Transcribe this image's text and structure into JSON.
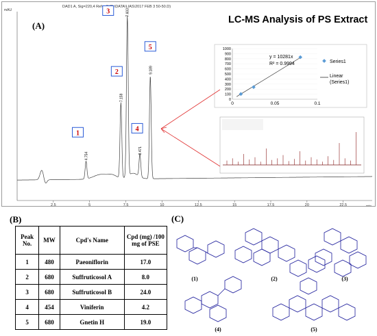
{
  "panel_a": {
    "label": "(A)",
    "header": "DAD1 A, Sig=220,4 Ref=off (D:\\DATA\\LIAS\\2017 FEB 3 50-50.D)",
    "y_unit": "mAU",
    "x_unit": "min",
    "title": "LC-MS Analysis of PS Extract",
    "peak_boxes": [
      "1",
      "2",
      "3",
      "4",
      "5"
    ],
    "peak_times": [
      "4.754",
      "7.159",
      "7.603",
      "8.471",
      "9.189"
    ],
    "colors": {
      "box_border": "#2a5bd7",
      "box_text": "#cc0000",
      "arrow": "#e03030",
      "trace": "#404040"
    }
  },
  "chart_data": [
    {
      "type": "line",
      "title": "LC-MS Analysis of PS Extract",
      "xlabel": "min",
      "ylabel": "mAU",
      "x_ticks": [
        "2.5",
        "5",
        "7.5",
        "10",
        "12.5",
        "15",
        "17.5",
        "20",
        "22.5"
      ],
      "xlim": [
        0,
        24.5
      ],
      "ylim": [
        -20,
        1100
      ],
      "peaks": [
        {
          "label": "1",
          "t": 4.754,
          "h": 110
        },
        {
          "label": "2",
          "t": 7.159,
          "h": 470
        },
        {
          "label": "3",
          "t": 7.603,
          "h": 1000
        },
        {
          "label": "4",
          "t": 8.471,
          "h": 140
        },
        {
          "label": "5",
          "t": 9.189,
          "h": 640
        }
      ]
    },
    {
      "type": "scatter",
      "x_ticks": [
        "0",
        "0.05",
        "0.1"
      ],
      "y_ticks": [
        "0",
        "100",
        "200",
        "300",
        "400",
        "500",
        "600",
        "700",
        "800",
        "900",
        "1000"
      ],
      "xlim": [
        0,
        0.1
      ],
      "ylim": [
        0,
        1000
      ],
      "equation": "y = 10281x",
      "r2": "R² = 0.9994",
      "series": [
        {
          "name": "Series1",
          "x": [
            0.01,
            0.025,
            0.08
          ],
          "y": [
            103,
            240,
            830
          ]
        },
        {
          "name": "Linear\n(Series1)",
          "type": "trendline"
        }
      ]
    }
  ],
  "table": {
    "label": "(B)",
    "headers": [
      "Peak No.",
      "MW",
      "Cpd's Name",
      "Cpd (mg) /100 mg of PSE"
    ],
    "rows": [
      [
        "1",
        "480",
        "Paeoniflorin",
        "17.0"
      ],
      [
        "2",
        "680",
        "Suffruticosol A",
        "8.0"
      ],
      [
        "3",
        "680",
        "Suffruticosol B",
        "24.0"
      ],
      [
        "4",
        "454",
        "Viniferin",
        "4.2"
      ],
      [
        "5",
        "680",
        "Gnetin H",
        "19.0"
      ]
    ]
  },
  "panel_c": {
    "label": "(C)",
    "structures": [
      "(1)",
      "(2)",
      "(3)",
      "(4)",
      "(5)"
    ]
  }
}
